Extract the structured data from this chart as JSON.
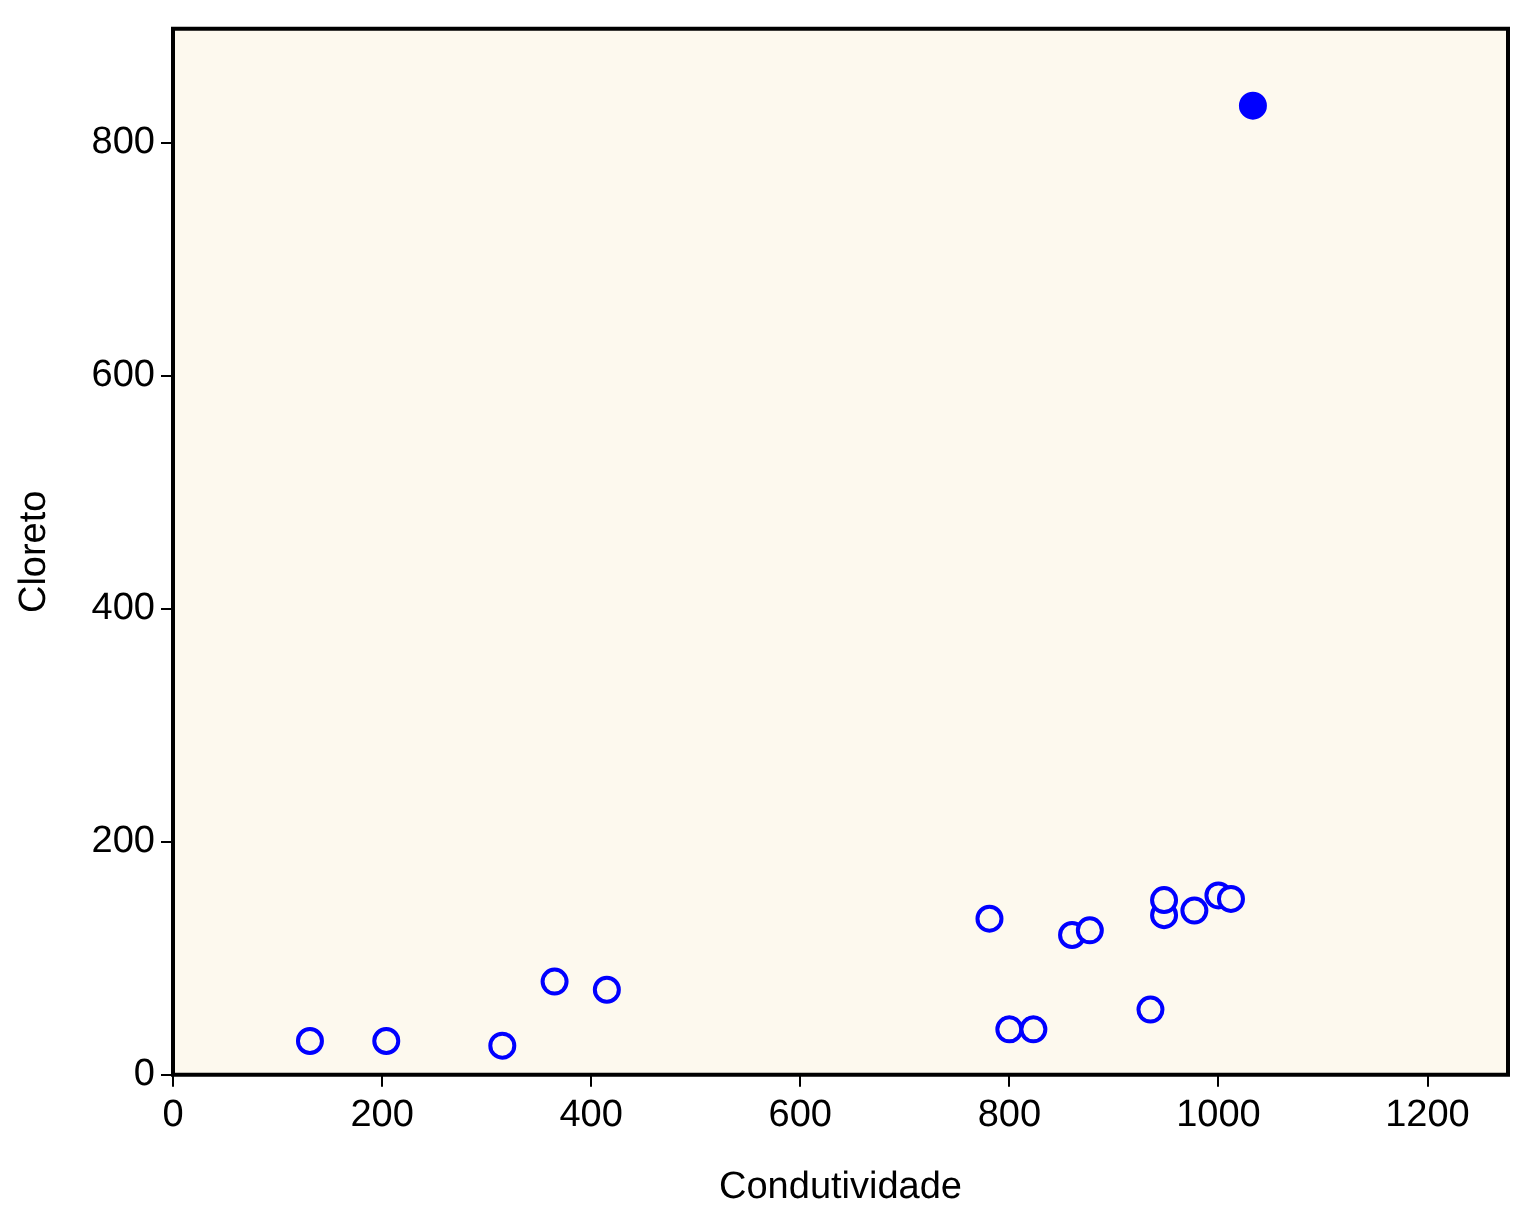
{
  "chart_data": {
    "type": "scatter",
    "xlabel": "Condutividade",
    "ylabel": "Cloreto",
    "xlim": [
      0,
      1277
    ],
    "ylim": [
      0,
      898
    ],
    "xticks": [
      0,
      200,
      400,
      600,
      800,
      1000,
      1200
    ],
    "yticks": [
      0,
      200,
      400,
      600,
      800
    ],
    "grid": false,
    "legend": false,
    "marker": "circle",
    "series": [
      {
        "color": "#0000ff",
        "x": [
          131,
          204,
          315,
          365,
          415,
          781,
          800,
          823,
          860,
          877,
          935,
          948,
          948,
          977,
          1000,
          1012
        ],
        "values": [
          29,
          29,
          25,
          80,
          73,
          134,
          39,
          39,
          120,
          124,
          56,
          137,
          150,
          141,
          154,
          151
        ]
      },
      {
        "color": "#0000ff",
        "x": [
          1033
        ],
        "values": [
          832
        ]
      }
    ]
  }
}
